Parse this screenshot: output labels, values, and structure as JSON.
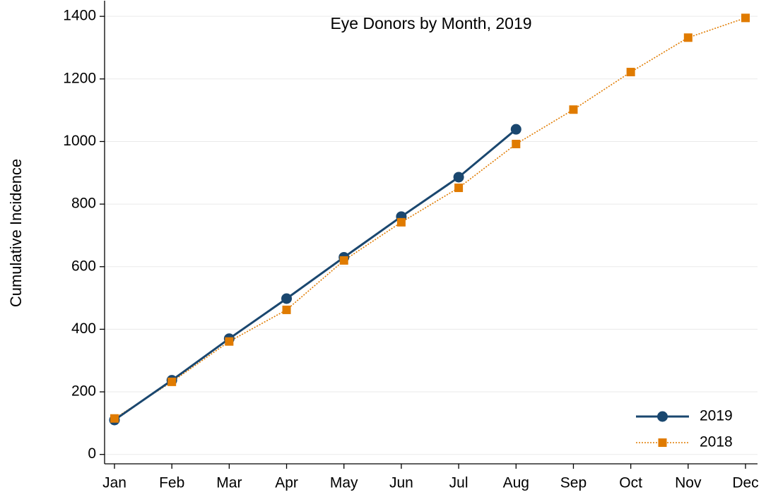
{
  "chart_data": {
    "type": "line",
    "title": "Eye Donors by Month, 2019",
    "ylabel": "Cumulative Incidence",
    "categories": [
      "Jan",
      "Feb",
      "Mar",
      "Apr",
      "May",
      "Jun",
      "Jul",
      "Aug",
      "Sep",
      "Oct",
      "Nov",
      "Dec"
    ],
    "series": [
      {
        "name": "2019",
        "color": "#1a476f",
        "style": "solid",
        "marker": "circle",
        "values": [
          110,
          237,
          370,
          498,
          630,
          760,
          886,
          1039,
          null,
          null,
          null,
          null
        ]
      },
      {
        "name": "2018",
        "color": "#e07b00",
        "style": "dotted",
        "marker": "square",
        "values": [
          115,
          232,
          361,
          462,
          620,
          742,
          852,
          992,
          1102,
          1222,
          1332,
          1395
        ]
      }
    ],
    "ylim": [
      -30,
      1450
    ],
    "yticks": [
      0,
      200,
      400,
      600,
      800,
      1000,
      1200,
      1400
    ],
    "grid": true,
    "legend": "lower right"
  }
}
